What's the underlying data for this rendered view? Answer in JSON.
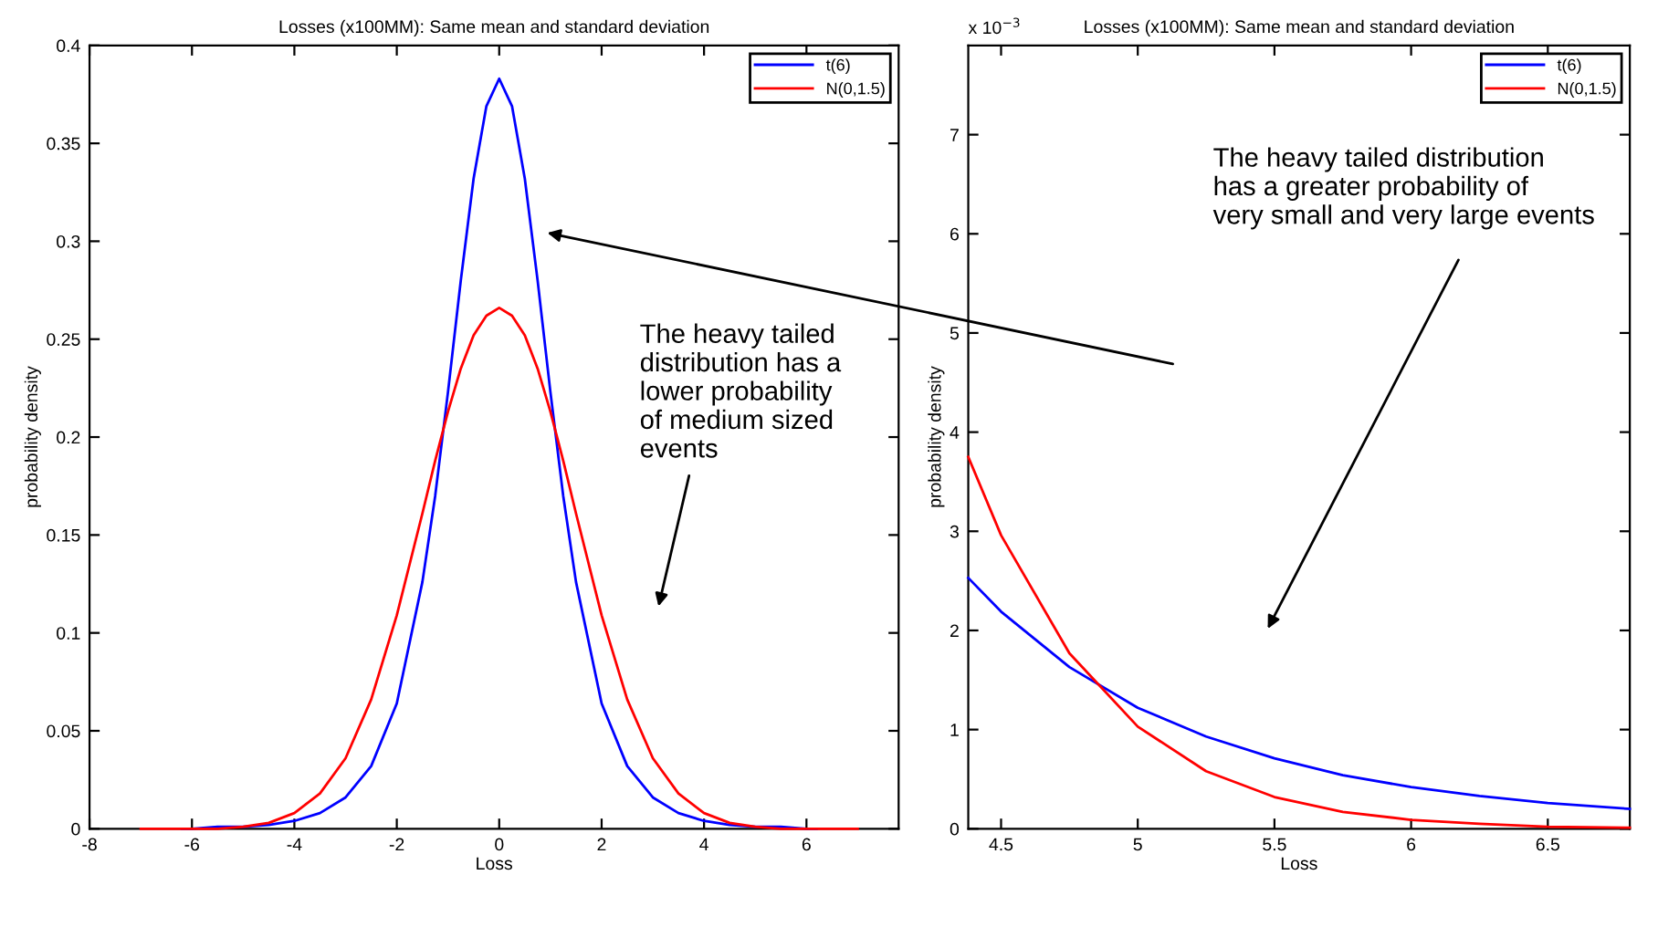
{
  "chart_data": [
    {
      "type": "line",
      "title": "Losses (x100MM): Same mean and standard deviation",
      "xlabel": "Loss",
      "ylabel": "probability density",
      "xlim": [
        -8,
        7.8
      ],
      "ylim": [
        0,
        0.4
      ],
      "xticks": [
        -8,
        -6,
        -4,
        -2,
        0,
        2,
        4,
        6
      ],
      "yticks": [
        0,
        0.05,
        0.1,
        0.15,
        0.2,
        0.25,
        0.3,
        0.35,
        0.4
      ],
      "grid": false,
      "legend": "top right",
      "marker": "none",
      "line_style": "solid",
      "annotations": [
        "The heavy tailed\ndistribution has a\nlower probability\nof medium sized\nevents"
      ],
      "series": [
        {
          "name": "t(6)",
          "color": "#0000ff",
          "x": [
            -6.2,
            -6,
            -5.5,
            -5,
            -4.5,
            -4,
            -3.5,
            -3,
            -2.5,
            -2,
            -1.5,
            -1.25,
            -1,
            -0.75,
            -0.5,
            -0.25,
            0,
            0.25,
            0.5,
            0.75,
            1,
            1.25,
            1.5,
            2,
            2.5,
            3,
            3.5,
            4,
            4.5,
            5,
            5.5,
            6,
            6.2
          ],
          "values": [
            0,
            0,
            0.001,
            0.001,
            0.002,
            0.004,
            0.008,
            0.016,
            0.032,
            0.064,
            0.126,
            0.17,
            0.223,
            0.28,
            0.332,
            0.369,
            0.383,
            0.369,
            0.332,
            0.28,
            0.223,
            0.17,
            0.126,
            0.064,
            0.032,
            0.016,
            0.008,
            0.004,
            0.002,
            0.001,
            0.001,
            0,
            0
          ]
        },
        {
          "name": "N(0,1.5)",
          "color": "#ff0000",
          "x": [
            -7,
            -6.5,
            -6,
            -5.5,
            -5,
            -4.5,
            -4,
            -3.5,
            -3,
            -2.5,
            -2,
            -1.5,
            -1.25,
            -1,
            -0.75,
            -0.5,
            -0.25,
            0,
            0.25,
            0.5,
            0.75,
            1,
            1.25,
            1.5,
            2,
            2.5,
            3,
            3.5,
            4,
            4.5,
            5,
            5.5,
            6,
            6.5,
            7
          ],
          "values": [
            0,
            0,
            0,
            0,
            0.001,
            0.003,
            0.008,
            0.018,
            0.036,
            0.066,
            0.109,
            0.161,
            0.188,
            0.213,
            0.235,
            0.252,
            0.262,
            0.266,
            0.262,
            0.252,
            0.235,
            0.213,
            0.188,
            0.161,
            0.109,
            0.066,
            0.036,
            0.018,
            0.008,
            0.003,
            0.001,
            0,
            0,
            0,
            0
          ]
        }
      ]
    },
    {
      "type": "line",
      "title": "Losses (x100MM): Same mean and standard deviation",
      "xlabel": "Loss",
      "ylabel": "probability density",
      "xlim": [
        4.38,
        6.8
      ],
      "ylim": [
        0,
        7.9
      ],
      "xticks": [
        4.5,
        5,
        5.5,
        6,
        6.5
      ],
      "yticks": [
        0,
        1,
        2,
        3,
        4,
        5,
        6,
        7
      ],
      "grid": false,
      "legend": "top right",
      "marker": "none",
      "line_style": "solid",
      "annotations": [
        "x 10$^{−3}$",
        "The heavy tailed distribution\nhas a greater probability of\nvery small and very large events"
      ],
      "series": [
        {
          "name": "t(6)",
          "color": "#0000ff",
          "x": [
            4.38,
            4.5,
            4.75,
            5,
            5.25,
            5.5,
            5.75,
            6,
            6.25,
            6.5,
            6.8
          ],
          "values": [
            2.53,
            2.19,
            1.63,
            1.22,
            0.93,
            0.71,
            0.54,
            0.42,
            0.33,
            0.26,
            0.2
          ]
        },
        {
          "name": "N(0,1.5)",
          "color": "#ff0000",
          "x": [
            4.38,
            4.5,
            4.75,
            5,
            5.25,
            5.5,
            5.75,
            6,
            6.25,
            6.5,
            6.8
          ],
          "values": [
            3.75,
            2.96,
            1.77,
            1.03,
            0.58,
            0.32,
            0.17,
            0.09,
            0.05,
            0.02,
            0.01
          ]
        }
      ]
    }
  ]
}
